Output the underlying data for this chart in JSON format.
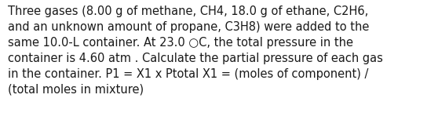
{
  "text": "Three gases (8.00 g of methane, CH4, 18.0 g of ethane, C2H6,\nand an unknown amount of propane, C3H8) were added to the\nsame 10.0-L container. At 23.0 ○C, the total pressure in the\ncontainer is 4.60 atm . Calculate the partial pressure of each gas\nin the container. P1 = X1 x Ptotal X1 = (moles of component) /\n(total moles in mixture)",
  "background_color": "#ffffff",
  "text_color": "#1a1a1a",
  "font_size": 10.5,
  "font_family": "DejaVu Sans",
  "fig_width": 5.58,
  "fig_height": 1.67,
  "dpi": 100
}
